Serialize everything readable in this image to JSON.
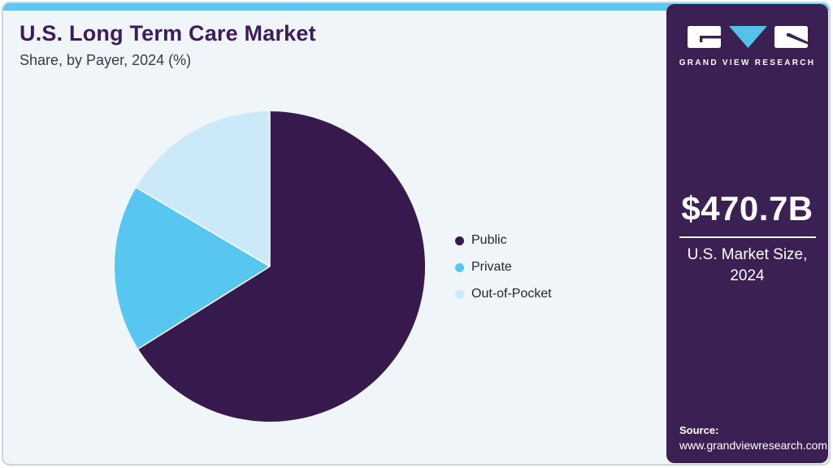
{
  "header": {
    "title": "U.S. Long Term Care Market",
    "subtitle": "Share, by Payer, 2024 (%)"
  },
  "sidebar": {
    "brand": "GRAND VIEW RESEARCH",
    "market_size": "$470.7B",
    "market_caption_line1": "U.S. Market Size,",
    "market_caption_line2": "2024",
    "source_label": "Source:",
    "source_url": "www.grandviewresearch.com"
  },
  "chart_data": {
    "type": "pie",
    "title": "U.S. Long Term Care Market Share, by Payer, 2024 (%)",
    "categories": [
      "Public",
      "Private",
      "Out-of-Pocket"
    ],
    "values": [
      66.1,
      17.4,
      16.5
    ],
    "unit": "%",
    "start_angle_deg": 0,
    "direction": "clockwise",
    "legend_position": "right",
    "data_labels": false,
    "colors": [
      "#371a4d",
      "#57c7f2",
      "#cbe9f9"
    ]
  },
  "theme": {
    "accent_bar": "#61c6eb",
    "card_background": "#eff5f9",
    "sidebar_background": "#3b2153",
    "title_color": "#3e1c5c",
    "logo_triangle": "#55c0ea",
    "separator": "#ffffff"
  }
}
